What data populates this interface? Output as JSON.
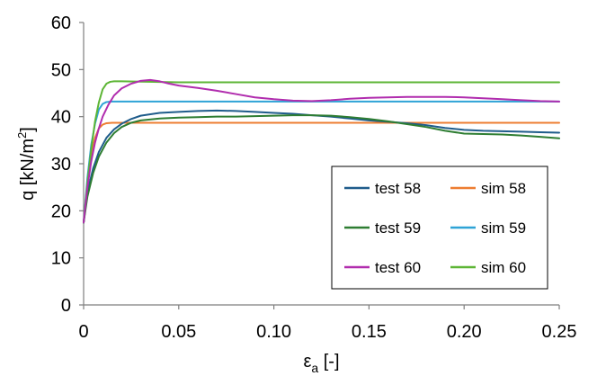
{
  "chart_data": {
    "type": "line",
    "xlabel": "ε",
    "xlabel_sub": "a",
    "xlabel_unit": " [-]",
    "ylabel": "q  [kN/m",
    "ylabel_sup": "2",
    "ylabel_end": "]",
    "xlim": [
      0,
      0.25
    ],
    "ylim": [
      0,
      60
    ],
    "x_ticks": [
      0,
      0.05,
      0.1,
      0.15,
      0.2,
      0.25
    ],
    "x_tick_labels": [
      "0",
      "0.05",
      "0.10",
      "0.15",
      "0.20",
      "0.25"
    ],
    "y_ticks": [
      0,
      10,
      20,
      30,
      40,
      50,
      60
    ],
    "y_tick_labels": [
      "0",
      "10",
      "20",
      "30",
      "40",
      "50",
      "60"
    ],
    "grid": "none",
    "legend_position": "bottom-right",
    "series": [
      {
        "name": "test 58",
        "color": "#1F5C8B",
        "x": [
          0,
          0.002,
          0.005,
          0.008,
          0.012,
          0.016,
          0.02,
          0.025,
          0.03,
          0.04,
          0.05,
          0.06,
          0.07,
          0.08,
          0.09,
          0.1,
          0.11,
          0.12,
          0.13,
          0.14,
          0.15,
          0.16,
          0.17,
          0.18,
          0.19,
          0.2,
          0.21,
          0.22,
          0.23,
          0.24,
          0.25
        ],
        "y": [
          17.5,
          24,
          29,
          32.5,
          35.5,
          37.3,
          38.5,
          39.5,
          40.2,
          40.8,
          41.0,
          41.2,
          41.3,
          41.2,
          41.0,
          40.8,
          40.6,
          40.3,
          40.0,
          39.6,
          39.2,
          38.9,
          38.6,
          38.2,
          37.6,
          37.2,
          37.0,
          36.9,
          36.8,
          36.7,
          36.6
        ]
      },
      {
        "name": "sim 58",
        "color": "#ED7D31",
        "x": [
          0,
          0.002,
          0.004,
          0.006,
          0.008,
          0.01,
          0.012,
          0.015,
          0.02,
          0.05,
          0.1,
          0.15,
          0.2,
          0.25
        ],
        "y": [
          17.5,
          26,
          32,
          35.5,
          37.5,
          38.3,
          38.6,
          38.7,
          38.7,
          38.7,
          38.7,
          38.7,
          38.7,
          38.7
        ]
      },
      {
        "name": "test 59",
        "color": "#2E7D32",
        "x": [
          0,
          0.002,
          0.005,
          0.008,
          0.012,
          0.016,
          0.02,
          0.025,
          0.03,
          0.04,
          0.05,
          0.06,
          0.07,
          0.08,
          0.09,
          0.1,
          0.11,
          0.12,
          0.13,
          0.14,
          0.15,
          0.16,
          0.17,
          0.18,
          0.19,
          0.2,
          0.21,
          0.22,
          0.23,
          0.24,
          0.25
        ],
        "y": [
          17.5,
          23,
          28,
          31.5,
          34.5,
          36.5,
          37.8,
          38.7,
          39.2,
          39.6,
          39.8,
          39.9,
          40.0,
          40.0,
          40.1,
          40.2,
          40.3,
          40.3,
          40.2,
          39.9,
          39.5,
          39.0,
          38.4,
          37.8,
          37.0,
          36.4,
          36.3,
          36.2,
          36.0,
          35.7,
          35.4
        ]
      },
      {
        "name": "sim 59",
        "color": "#2EA3D6",
        "x": [
          0,
          0.002,
          0.004,
          0.006,
          0.008,
          0.01,
          0.012,
          0.015,
          0.02,
          0.05,
          0.1,
          0.15,
          0.2,
          0.25
        ],
        "y": [
          17.5,
          27,
          34,
          38.5,
          41.5,
          42.7,
          43.1,
          43.2,
          43.2,
          43.2,
          43.2,
          43.2,
          43.2,
          43.2
        ]
      },
      {
        "name": "test 60",
        "color": "#B12DAE",
        "x": [
          0,
          0.002,
          0.004,
          0.006,
          0.008,
          0.01,
          0.013,
          0.016,
          0.02,
          0.025,
          0.03,
          0.035,
          0.04,
          0.045,
          0.05,
          0.06,
          0.07,
          0.08,
          0.09,
          0.1,
          0.11,
          0.12,
          0.13,
          0.14,
          0.15,
          0.16,
          0.17,
          0.18,
          0.19,
          0.2,
          0.21,
          0.22,
          0.23,
          0.24,
          0.25
        ],
        "y": [
          17.5,
          25,
          30.5,
          34.5,
          37.5,
          40,
          42.5,
          44.5,
          46.0,
          47.0,
          47.6,
          47.8,
          47.5,
          47.0,
          46.6,
          46.1,
          45.5,
          44.8,
          44.1,
          43.7,
          43.4,
          43.3,
          43.5,
          43.8,
          44.0,
          44.1,
          44.2,
          44.2,
          44.2,
          44.1,
          43.9,
          43.7,
          43.5,
          43.3,
          43.2
        ]
      },
      {
        "name": "sim 60",
        "color": "#5DB535",
        "x": [
          0,
          0.002,
          0.004,
          0.006,
          0.008,
          0.01,
          0.012,
          0.014,
          0.016,
          0.02,
          0.05,
          0.1,
          0.15,
          0.2,
          0.25
        ],
        "y": [
          17.5,
          26,
          33,
          39,
          43,
          45.8,
          47.0,
          47.4,
          47.5,
          47.5,
          47.3,
          47.3,
          47.3,
          47.3,
          47.3
        ]
      }
    ]
  }
}
